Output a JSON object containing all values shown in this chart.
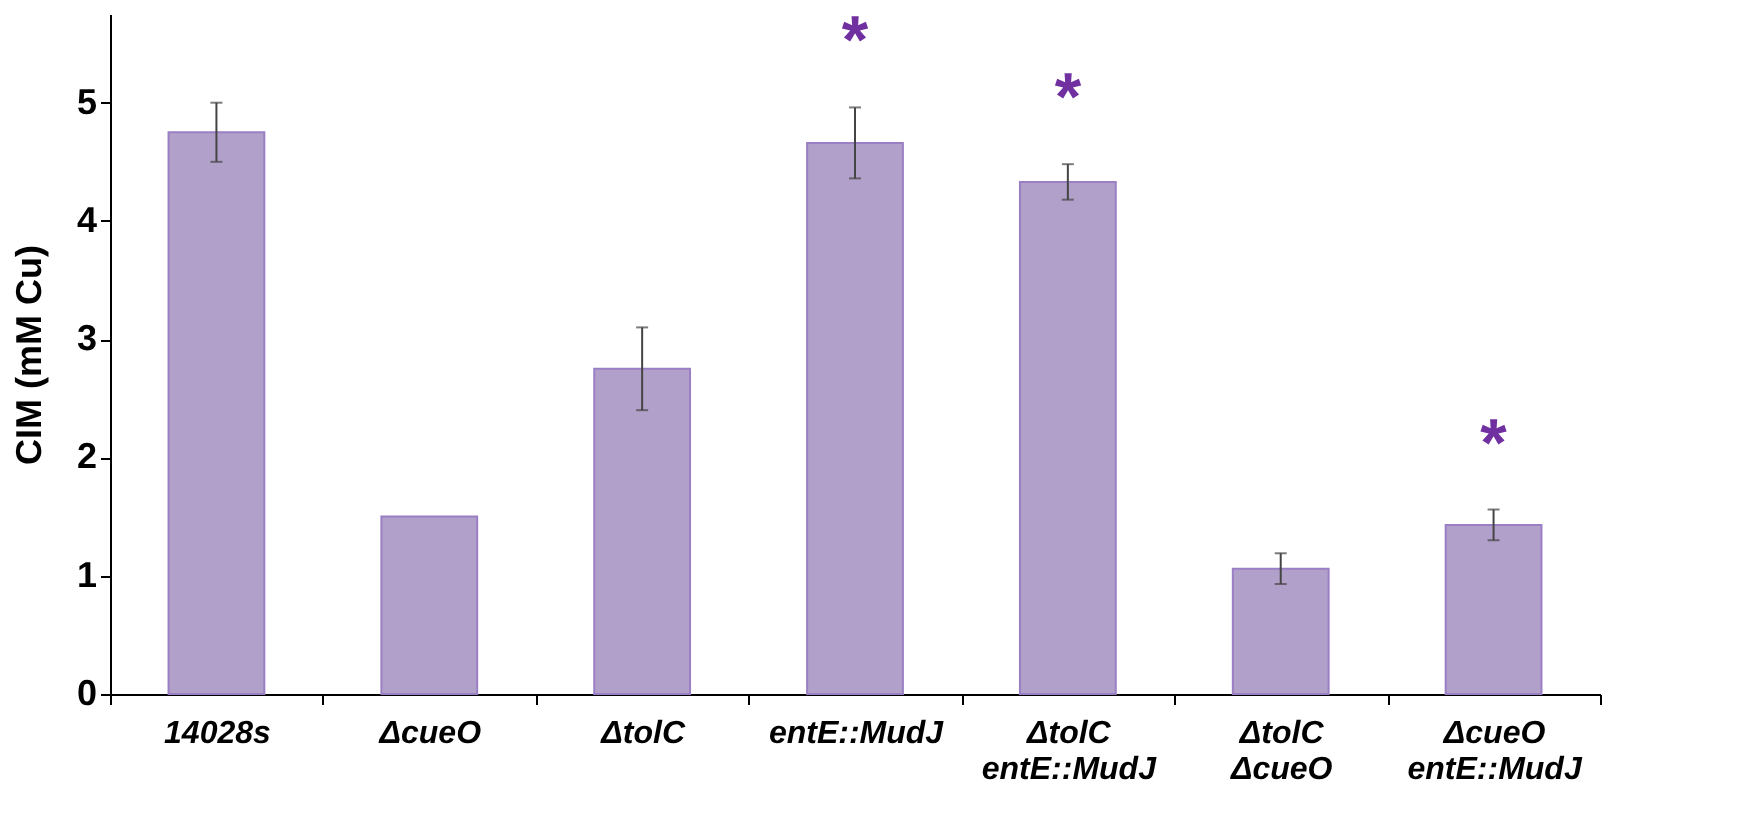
{
  "chart_data": {
    "type": "bar",
    "ylabel": "CIM (mM Cu)",
    "categories": [
      "14028s",
      "ΔcueO",
      "ΔtolC",
      "entE::MudJ",
      "ΔtolC entE::MudJ",
      "ΔtolC ΔcueO",
      "ΔcueO entE::MudJ"
    ],
    "values": [
      4.75,
      1.5,
      2.75,
      4.66,
      4.33,
      1.06,
      1.43
    ],
    "errors": [
      0.25,
      null,
      0.35,
      0.3,
      0.15,
      0.13,
      0.13
    ],
    "color": "#b1a0c9",
    "ylim": [
      0,
      5.75
    ],
    "yticks": [
      0,
      1,
      2,
      3,
      4,
      5
    ],
    "grid": false,
    "annotations": [
      {
        "text": "*",
        "x": "entE::MudJ",
        "y": 4.66
      },
      {
        "text": "*",
        "x": "ΔtolC entE::MudJ",
        "y": 4.33
      },
      {
        "text": "*",
        "x": "ΔcueO entE::MudJ",
        "y": 1.43
      }
    ]
  }
}
